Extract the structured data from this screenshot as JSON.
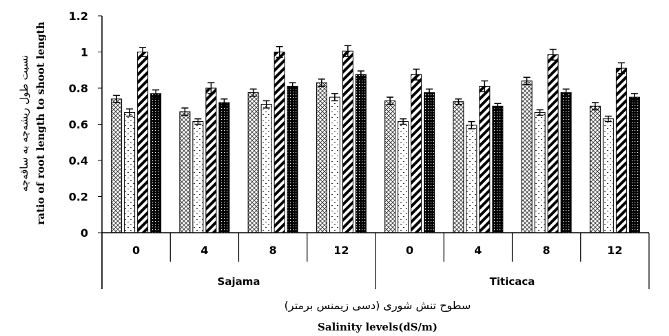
{
  "chart_data": {
    "type": "bar",
    "ylabel_fa": "نسبت طول ریشه‌چه به ساقه‌چه",
    "ylabel_en": "ratio of root length to shoot length",
    "xlabel_fa": "سطوح تنش شوری (دسی زیمنس برمتر)",
    "xlabel_en": "Salinity levels(dS/m)",
    "ylim": [
      0,
      1.2
    ],
    "yticks": [
      "0",
      "0.2",
      "0.4",
      "0.6",
      "0.8",
      "1",
      "1.2"
    ],
    "ytick_values": [
      0,
      0.2,
      0.4,
      0.6,
      0.8,
      1.0,
      1.2
    ],
    "groups": [
      "Sajama",
      "Titicaca"
    ],
    "categories": [
      "0",
      "4",
      "8",
      "12",
      "0",
      "4",
      "8",
      "12"
    ],
    "category_group": [
      0,
      0,
      0,
      0,
      1,
      1,
      1,
      1
    ],
    "grid": false,
    "series": [
      {
        "pattern": "crosshatch",
        "values": [
          0.74,
          0.67,
          0.775,
          0.83,
          0.73,
          0.725,
          0.84,
          0.7
        ],
        "errors": [
          0.02,
          0.02,
          0.02,
          0.02,
          0.02,
          0.015,
          0.02,
          0.02
        ]
      },
      {
        "pattern": "dashed-dots",
        "values": [
          0.665,
          0.615,
          0.71,
          0.75,
          0.615,
          0.595,
          0.665,
          0.63
        ],
        "errors": [
          0.02,
          0.015,
          0.02,
          0.02,
          0.015,
          0.02,
          0.015,
          0.015
        ]
      },
      {
        "pattern": "diagonal-stripes",
        "values": [
          1.0,
          0.8,
          1.0,
          1.005,
          0.875,
          0.81,
          0.985,
          0.91
        ],
        "errors": [
          0.025,
          0.03,
          0.03,
          0.03,
          0.03,
          0.03,
          0.03,
          0.03
        ]
      },
      {
        "pattern": "dense-dots",
        "values": [
          0.77,
          0.72,
          0.81,
          0.875,
          0.775,
          0.7,
          0.775,
          0.75
        ],
        "errors": [
          0.02,
          0.02,
          0.02,
          0.02,
          0.02,
          0.015,
          0.02,
          0.02
        ]
      }
    ]
  }
}
